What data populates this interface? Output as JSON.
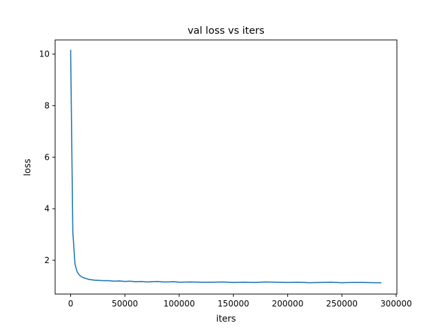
{
  "chart_data": {
    "type": "line",
    "title": "val loss vs iters",
    "xlabel": "iters",
    "ylabel": "loss",
    "xlim": [
      -14300,
      300700
    ],
    "ylim": [
      0.69,
      10.55
    ],
    "x_ticks": [
      0,
      50000,
      100000,
      150000,
      200000,
      250000,
      300000
    ],
    "x_tick_labels": [
      "0",
      "50000",
      "100000",
      "150000",
      "200000",
      "250000",
      "300000"
    ],
    "y_ticks": [
      2,
      4,
      6,
      8,
      10
    ],
    "y_tick_labels": [
      "2",
      "4",
      "6",
      "8",
      "10"
    ],
    "grid": false,
    "line_color": "#1f77b4",
    "series": [
      {
        "x": [
          0,
          2000,
          4000,
          6000,
          8000,
          10000,
          12000,
          15000,
          18000,
          22000,
          26000,
          30000,
          35000,
          40000,
          45000,
          50000,
          55000,
          60000,
          65000,
          70000,
          75000,
          80000,
          85000,
          90000,
          95000,
          100000,
          110000,
          120000,
          130000,
          140000,
          150000,
          160000,
          170000,
          180000,
          190000,
          200000,
          210000,
          220000,
          230000,
          240000,
          250000,
          260000,
          270000,
          280000,
          286000
        ],
        "y": [
          10.15,
          3.1,
          1.85,
          1.55,
          1.43,
          1.36,
          1.32,
          1.28,
          1.25,
          1.23,
          1.22,
          1.21,
          1.21,
          1.19,
          1.2,
          1.18,
          1.19,
          1.17,
          1.18,
          1.16,
          1.17,
          1.18,
          1.16,
          1.16,
          1.17,
          1.15,
          1.16,
          1.15,
          1.15,
          1.16,
          1.14,
          1.15,
          1.14,
          1.16,
          1.15,
          1.14,
          1.15,
          1.13,
          1.14,
          1.15,
          1.13,
          1.14,
          1.14,
          1.13,
          1.13
        ]
      }
    ]
  }
}
